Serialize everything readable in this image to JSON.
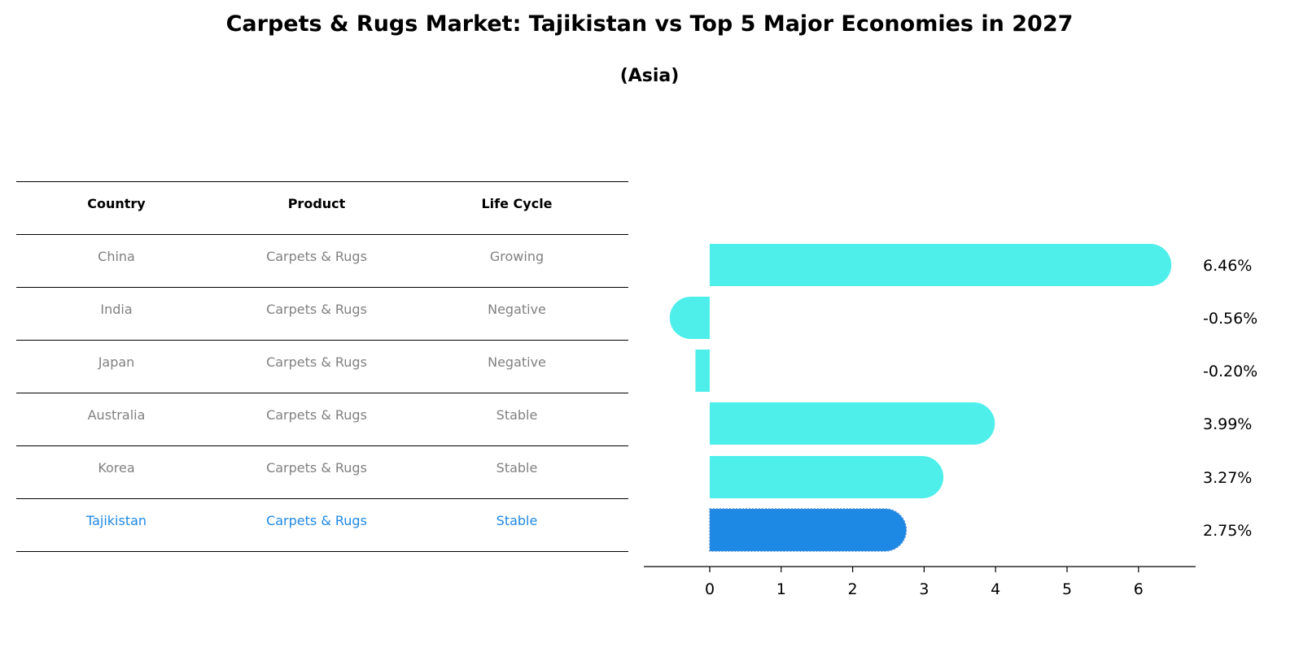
{
  "title": "Carpets & Rugs Market: Tajikistan vs Top 5 Major Economies in 2027",
  "subtitle": "(Asia)",
  "table": {
    "headers": [
      "Country",
      "Product",
      "Life Cycle"
    ],
    "rows": [
      [
        "China",
        "Carpets & Rugs",
        "Growing"
      ],
      [
        "India",
        "Carpets & Rugs",
        "Negative"
      ],
      [
        "Japan",
        "Carpets & Rugs",
        "Negative"
      ],
      [
        "Australia",
        "Carpets & Rugs",
        "Stable"
      ],
      [
        "Korea",
        "Carpets & Rugs",
        "Stable"
      ],
      [
        "Tajikistan",
        "Carpets & Rugs",
        "Stable"
      ]
    ],
    "highlight_row": 5
  },
  "colors": {
    "bar": "#4eeeea",
    "highlight": "#1e88e5",
    "text_muted": "#808080"
  },
  "chart_data": {
    "type": "bar",
    "orientation": "horizontal",
    "categories": [
      "China",
      "India",
      "Japan",
      "Australia",
      "Korea",
      "Tajikistan"
    ],
    "values": [
      6.46,
      -0.56,
      -0.2,
      3.99,
      3.27,
      2.75
    ],
    "value_labels": [
      "6.46%",
      "-0.56%",
      "-0.20%",
      "3.99%",
      "3.27%",
      "2.75%"
    ],
    "highlight_index": 5,
    "xlim": [
      -0.9,
      6.8
    ],
    "xticks": [
      0,
      1,
      2,
      3,
      4,
      5,
      6
    ],
    "xlabel": "",
    "ylabel": "",
    "grid": false
  }
}
